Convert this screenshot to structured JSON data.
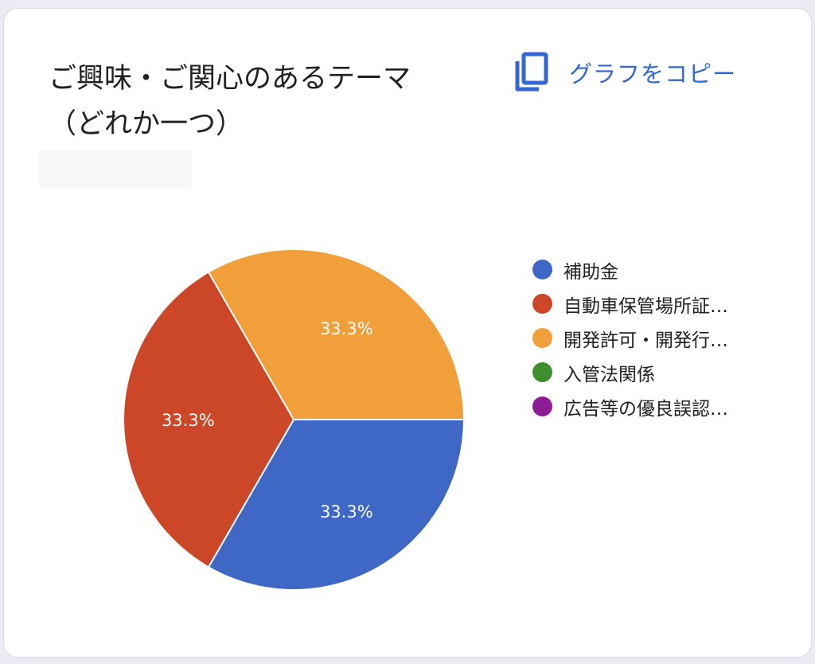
{
  "title_lines": [
    "ご興味・ご関心のあるテーマ",
    "（どれか一つ）"
  ],
  "copy_button": {
    "label": "グラフをコピー",
    "icon": "copy-icon"
  },
  "colors": {
    "accent": "#3367D6",
    "blue": "#3F67C6",
    "red": "#CB4728",
    "orange": "#F09F3A",
    "green": "#3E8E2F",
    "purple": "#8E1D95"
  },
  "chart_data": {
    "type": "pie",
    "slices": [
      {
        "name": "補助金",
        "value": 33.3,
        "label": "33.3%",
        "color": "#3F67C6"
      },
      {
        "name": "自動車保管場所証…",
        "value": 33.3,
        "label": "33.3%",
        "color": "#CB4728"
      },
      {
        "name": "開発許可・開発行…",
        "value": 33.3,
        "label": "33.3%",
        "color": "#F09F3A"
      },
      {
        "name": "入管法関係",
        "value": 0,
        "label": "",
        "color": "#3E8E2F"
      },
      {
        "name": "広告等の優良誤認…",
        "value": 0,
        "label": "",
        "color": "#8E1D95"
      }
    ],
    "legend_position": "right"
  }
}
